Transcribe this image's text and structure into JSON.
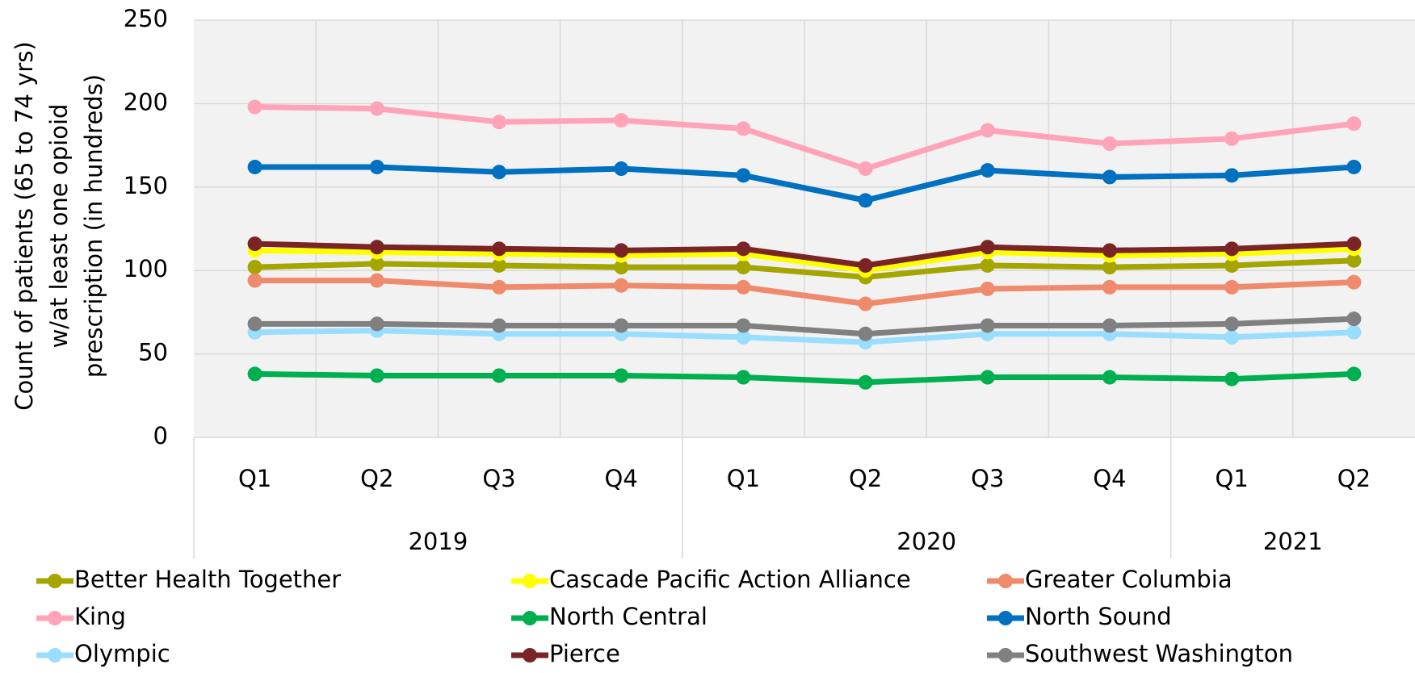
{
  "chart_data": {
    "type": "line",
    "y_axis_label": [
      "Count of patients (65 to 74 yrs)",
      "w/at least one opioid",
      "prescription (in hundreds)"
    ],
    "category_groups": [
      {
        "name": "2019",
        "categories": [
          "Q1",
          "Q2",
          "Q3",
          "Q4"
        ]
      },
      {
        "name": "2020",
        "categories": [
          "Q1",
          "Q2",
          "Q3",
          "Q4"
        ]
      },
      {
        "name": "2021",
        "categories": [
          "Q1",
          "Q2"
        ]
      }
    ],
    "ylim": [
      0,
      250
    ],
    "yticks": [
      0,
      50,
      100,
      150,
      200,
      250
    ],
    "grid": true,
    "series": [
      {
        "name": "Better Health Together",
        "color": "#a5a500",
        "values": [
          102,
          104,
          103,
          102,
          102,
          96,
          103,
          102,
          103,
          106
        ]
      },
      {
        "name": "Cascade Pacific Action Alliance",
        "color": "#ffff00",
        "values": [
          112,
          111,
          110,
          109,
          110,
          100,
          111,
          109,
          110,
          113
        ]
      },
      {
        "name": "Greater Columbia",
        "color": "#f08a6c",
        "values": [
          94,
          94,
          90,
          91,
          90,
          80,
          89,
          90,
          90,
          93
        ]
      },
      {
        "name": "King",
        "color": "#ffa3b8",
        "values": [
          198,
          197,
          189,
          190,
          185,
          161,
          184,
          176,
          179,
          188
        ]
      },
      {
        "name": "North Central",
        "color": "#00b050",
        "values": [
          38,
          37,
          37,
          37,
          36,
          33,
          36,
          36,
          35,
          38
        ]
      },
      {
        "name": "North Sound",
        "color": "#0070c0",
        "values": [
          162,
          162,
          159,
          161,
          157,
          142,
          160,
          156,
          157,
          162
        ]
      },
      {
        "name": "Olympic",
        "color": "#99ddff",
        "values": [
          63,
          64,
          62,
          62,
          60,
          57,
          62,
          62,
          60,
          63
        ]
      },
      {
        "name": "Pierce",
        "color": "#7b2426",
        "values": [
          116,
          114,
          113,
          112,
          113,
          103,
          114,
          112,
          113,
          116
        ]
      },
      {
        "name": "Southwest Washington",
        "color": "#808080",
        "values": [
          68,
          68,
          67,
          67,
          67,
          62,
          67,
          67,
          68,
          71
        ]
      }
    ]
  }
}
